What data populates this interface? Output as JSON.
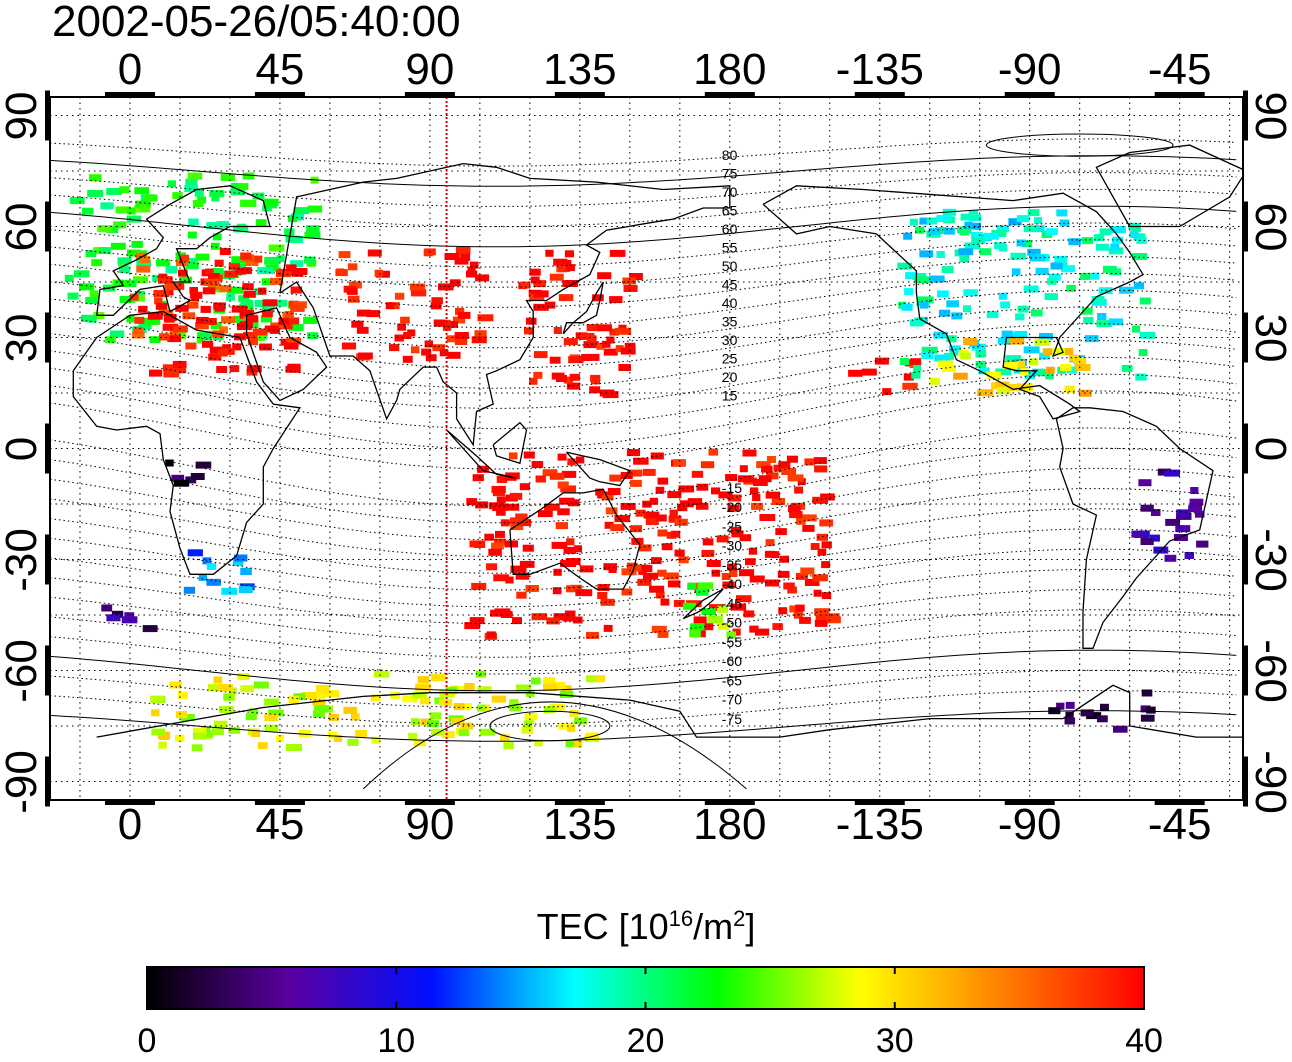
{
  "title": "2002-05-26/05:40:00",
  "map": {
    "lon_ticks": [
      "0",
      "45",
      "90",
      "135",
      "180",
      "-135",
      "-90",
      "-45"
    ],
    "lon_values": [
      0,
      45,
      90,
      135,
      180,
      225,
      270,
      315
    ],
    "lat_ticks": [
      "90",
      "60",
      "30",
      "0",
      "-30",
      "-60",
      "-90"
    ],
    "lat_values": [
      90,
      60,
      30,
      0,
      -30,
      -60,
      -90
    ],
    "lon_range": [
      -24,
      334
    ],
    "lat_range": [
      -95,
      95
    ],
    "grid": "dotted",
    "terminator_longitude": 95,
    "terminator_color": "#e00000",
    "contour_labels_north": [
      "80",
      "75",
      "70",
      "65",
      "60",
      "55",
      "50",
      "45",
      "40",
      "35",
      "30",
      "25",
      "20",
      "15"
    ],
    "contour_labels_south": [
      "15",
      "20",
      "25",
      "30",
      "35",
      "40",
      "45",
      "50",
      "55",
      "60",
      "65",
      "70",
      "75"
    ]
  },
  "colorbar": {
    "title": "TEC [10",
    "title_sup": "16",
    "title_mid": "/m",
    "title_sup2": "2",
    "title_end": "]",
    "ticks": [
      "0",
      "10",
      "20",
      "30",
      "40"
    ],
    "tick_values": [
      0,
      10,
      20,
      30,
      40
    ],
    "range": [
      0,
      40
    ],
    "colors": [
      "#000000",
      "#5a00a0",
      "#0010ff",
      "#00ffff",
      "#00ff00",
      "#ffff00",
      "#ff8000",
      "#ff0000"
    ]
  },
  "chart_data": {
    "type": "heatmap",
    "title": "2002-05-26/05:40:00",
    "xlabel": "",
    "ylabel": "",
    "colorbar_label": "TEC [10^16/m^2]",
    "value_range": [
      0,
      40
    ],
    "regions": [
      {
        "lon": [
          -20,
          55
        ],
        "lat": [
          30,
          75
        ],
        "tec": 22
      },
      {
        "lon": [
          0,
          50
        ],
        "lat": [
          30,
          55
        ],
        "tec": 38
      },
      {
        "lon": [
          5,
          50
        ],
        "lat": [
          20,
          50
        ],
        "tec": 40
      },
      {
        "lon": [
          60,
          105
        ],
        "lat": [
          25,
          55
        ],
        "tec": 40
      },
      {
        "lon": [
          115,
          150
        ],
        "lat": [
          15,
          55
        ],
        "tec": 40
      },
      {
        "lon": [
          100,
          210
        ],
        "lat": [
          -50,
          0
        ],
        "tec": 40
      },
      {
        "lon": [
          215,
          235
        ],
        "lat": [
          15,
          25
        ],
        "tec": 40
      },
      {
        "lon": [
          230,
          305
        ],
        "lat": [
          20,
          65
        ],
        "tec": 18
      },
      {
        "lon": [
          240,
          285
        ],
        "lat": [
          15,
          30
        ],
        "tec": 30
      },
      {
        "lon": [
          10,
          20
        ],
        "lat": [
          -10,
          0
        ],
        "tec": 2
      },
      {
        "lon": [
          15,
          35
        ],
        "lat": [
          -38,
          -25
        ],
        "tec": 14
      },
      {
        "lon": [
          300,
          320
        ],
        "lat": [
          -30,
          -5
        ],
        "tec": 6
      },
      {
        "lon": [
          165,
          180
        ],
        "lat": [
          -50,
          -35
        ],
        "tec": 25
      },
      {
        "lon": [
          -10,
          5
        ],
        "lat": [
          -48,
          -42
        ],
        "tec": 5
      },
      {
        "lon": [
          5,
          140
        ],
        "lat": [
          -80,
          -60
        ],
        "tec": 28
      },
      {
        "lon": [
          275,
          305
        ],
        "lat": [
          -75,
          -65
        ],
        "tec": 3
      }
    ]
  }
}
